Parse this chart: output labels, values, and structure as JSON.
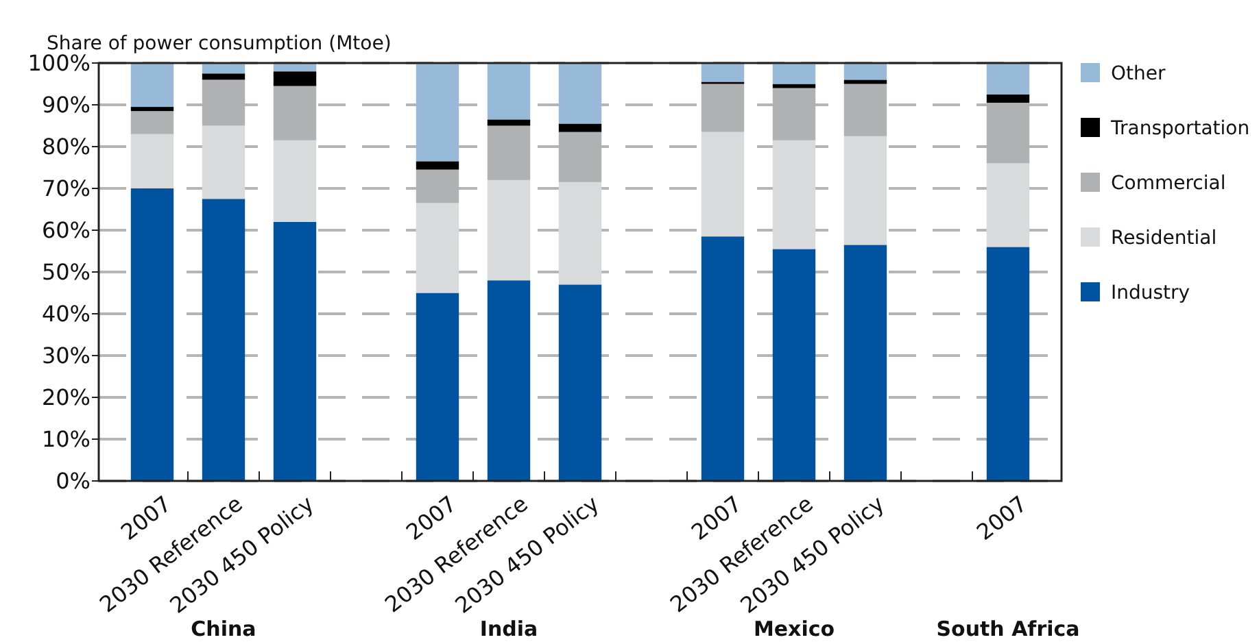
{
  "chart_data": {
    "type": "bar",
    "stacked": true,
    "ylabel": "Share of power consumption (Mtoe)",
    "categories": [
      "2007",
      "2030 Reference",
      "2030 450 Policy",
      null,
      "2007",
      "2030 Reference",
      "2030 450 Policy",
      null,
      "2007",
      "2030 Reference",
      "2030 450 Policy",
      null,
      "2007"
    ],
    "series": [
      {
        "name": "Industry",
        "color": "#00549f",
        "values": [
          70,
          67.5,
          62,
          null,
          45,
          48,
          47,
          null,
          58.5,
          55.5,
          56.5,
          null,
          56
        ]
      },
      {
        "name": "Residential",
        "color": "#d9dadb",
        "values": [
          13,
          17.5,
          19.5,
          null,
          21.5,
          24,
          24.5,
          null,
          25,
          26,
          26,
          null,
          20
        ]
      },
      {
        "name": "Commercial",
        "color": "#b0b1b2",
        "values": [
          5.5,
          11,
          13,
          null,
          8,
          13,
          12,
          null,
          11.5,
          12.5,
          12.5,
          null,
          14.5
        ]
      },
      {
        "name": "Transportation",
        "color": "#000000",
        "values": [
          1,
          1.5,
          3.5,
          null,
          2,
          1.5,
          2,
          null,
          0.5,
          1,
          1,
          null,
          2
        ]
      },
      {
        "name": "Other",
        "color": "#98bad9",
        "values": [
          10.5,
          2.5,
          2,
          null,
          23.5,
          13.5,
          14.5,
          null,
          4.5,
          5,
          4,
          null,
          7.5
        ]
      }
    ],
    "ylim": [
      0,
      100
    ],
    "yticks": [
      {
        "value": 0,
        "label": "0%"
      },
      {
        "value": 10,
        "label": "10%"
      },
      {
        "value": 20,
        "label": "20%"
      },
      {
        "value": 30,
        "label": "30%"
      },
      {
        "value": 40,
        "label": "40%"
      },
      {
        "value": 50,
        "label": "50%"
      },
      {
        "value": 60,
        "label": "60%"
      },
      {
        "value": 70,
        "label": "70%"
      },
      {
        "value": 80,
        "label": "80%"
      },
      {
        "value": 90,
        "label": "90%"
      },
      {
        "value": 100,
        "label": "100%"
      }
    ],
    "grid": "y",
    "legend": "right",
    "line_style": "dashed",
    "annotations": [
      "China",
      "India",
      "Mexico",
      "South Africa"
    ]
  }
}
